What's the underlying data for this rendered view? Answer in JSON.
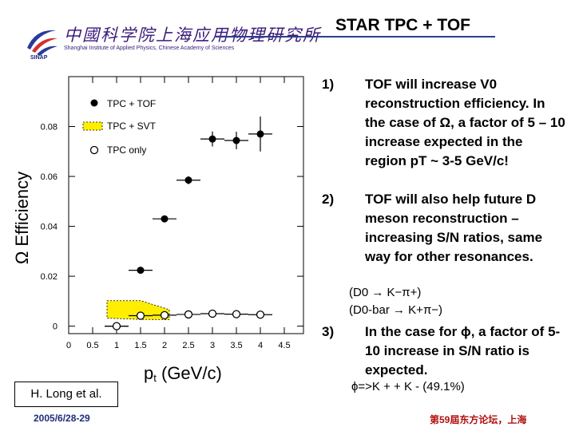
{
  "header": {
    "title": "STAR TPC + TOF",
    "institute_cn": "中國科学院上海应用物理研究所",
    "institute_en": "Shanghai Institute of Applied Physics, Chinese Academy of Sciences",
    "institute_abbr": "SINAP"
  },
  "plot": {
    "ylabel": "Ω Efficiency",
    "xlabel_main": "p",
    "xlabel_sub": "t",
    "xlabel_unit": " (GeV/c)",
    "side_label": "/star/u/xzb/STAR/TOF/OmegaEff.eps",
    "yticks": [
      "0",
      "0.02",
      "0.04",
      "0.06",
      "0.08"
    ],
    "xticks": [
      "0",
      "0.5",
      "1",
      "1.5",
      "2",
      "2.5",
      "3",
      "3.5",
      "4",
      "4.5"
    ],
    "legend": [
      "TPC + TOF",
      "TPC + SVT",
      "TPC only"
    ]
  },
  "chart_data": {
    "type": "scatter",
    "xlabel": "pt (GeV/c)",
    "ylabel": "Ω Efficiency",
    "xlim": [
      0,
      4.9
    ],
    "ylim": [
      -0.003,
      0.1
    ],
    "grid": false,
    "legend_position": "top-left",
    "series": [
      {
        "name": "TPC + TOF",
        "marker": "filled-circle",
        "color": "#000000",
        "x": [
          1.0,
          1.5,
          2.0,
          2.5,
          3.0,
          3.5,
          4.0
        ],
        "y": [
          0.0,
          0.0224,
          0.043,
          0.0585,
          0.075,
          0.0744,
          0.077
        ],
        "yerr": [
          0.0004,
          0.0008,
          0.0012,
          0.0016,
          0.003,
          0.0035,
          0.007
        ],
        "xerr": [
          0.25,
          0.25,
          0.25,
          0.25,
          0.25,
          0.25,
          0.25
        ]
      },
      {
        "name": "TPC + SVT",
        "marker": "band",
        "color": "#ffee00",
        "x": [
          0.8,
          1.5,
          2.1
        ],
        "y_low": [
          0.0032,
          0.0027,
          0.0026
        ],
        "y_high": [
          0.0102,
          0.0102,
          0.0066
        ]
      },
      {
        "name": "TPC only",
        "marker": "open-circle",
        "color": "#000000",
        "x": [
          1.0,
          1.5,
          2.0,
          2.5,
          3.0,
          3.5,
          4.0
        ],
        "y": [
          0.0,
          0.0042,
          0.0044,
          0.0047,
          0.005,
          0.0048,
          0.0046
        ],
        "xerr": [
          0.25,
          0.25,
          0.25,
          0.25,
          0.25,
          0.25,
          0.25
        ]
      }
    ]
  },
  "bullets": [
    {
      "num": "1)",
      "text": "TOF will increase V0 reconstruction efficiency. In the case of Ω, a factor of 5 – 10 increase expected in the region pT ~ 3-5 GeV/c!"
    },
    {
      "num": "2)",
      "text": "TOF will also help future D meson reconstruction – increasing S/N ratios, same way for other resonances."
    },
    {
      "num": "3)",
      "text": "In the case for ϕ, a factor of 5-10 increase in S/N ratio is expected."
    }
  ],
  "decays": {
    "d0": "(D0 → K−π+)",
    "d0bar": "(D0-bar → K+π−)",
    "phi": "ϕ=>K + + K -   (49.1%)"
  },
  "credit": "H. Long et al.",
  "footer": {
    "date": "2005/6/28-29",
    "conference": "第59屆东方论坛，上海"
  }
}
